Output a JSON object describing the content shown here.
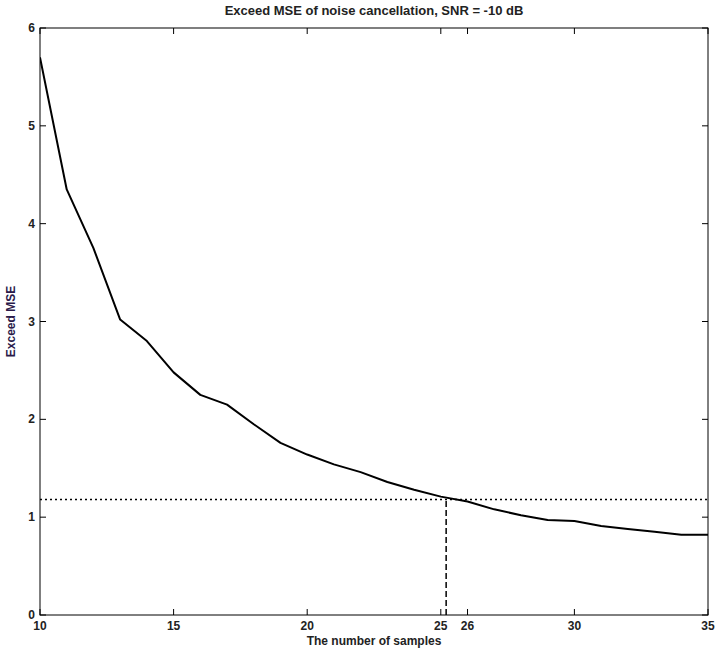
{
  "chart_data": {
    "type": "line",
    "title": "Exceed MSE of noise cancellation, SNR = -10 dB",
    "x_label": "The number of samples",
    "y_label": "Exceed MSE",
    "x": [
      10,
      11,
      12,
      13,
      14,
      15,
      16,
      17,
      18,
      19,
      20,
      21,
      22,
      23,
      24,
      25,
      26,
      27,
      28,
      29,
      30,
      31,
      32,
      33,
      34,
      35
    ],
    "values": [
      5.7,
      4.35,
      3.75,
      3.02,
      2.8,
      2.48,
      2.25,
      2.15,
      1.95,
      1.76,
      1.64,
      1.54,
      1.46,
      1.36,
      1.28,
      1.21,
      1.16,
      1.08,
      1.02,
      0.97,
      0.96,
      0.91,
      0.88,
      0.85,
      0.82,
      0.82
    ],
    "color": "#000000",
    "line_style": "solid",
    "threshold": {
      "x": 25.2,
      "y": 1.18
    },
    "xlim": [
      10,
      35
    ],
    "xticks": [
      10,
      15,
      20,
      25,
      26,
      30,
      35
    ],
    "ylim": [
      0,
      6
    ],
    "yticks": [
      0,
      1,
      2,
      3,
      4,
      5,
      6
    ],
    "grid": false
  }
}
